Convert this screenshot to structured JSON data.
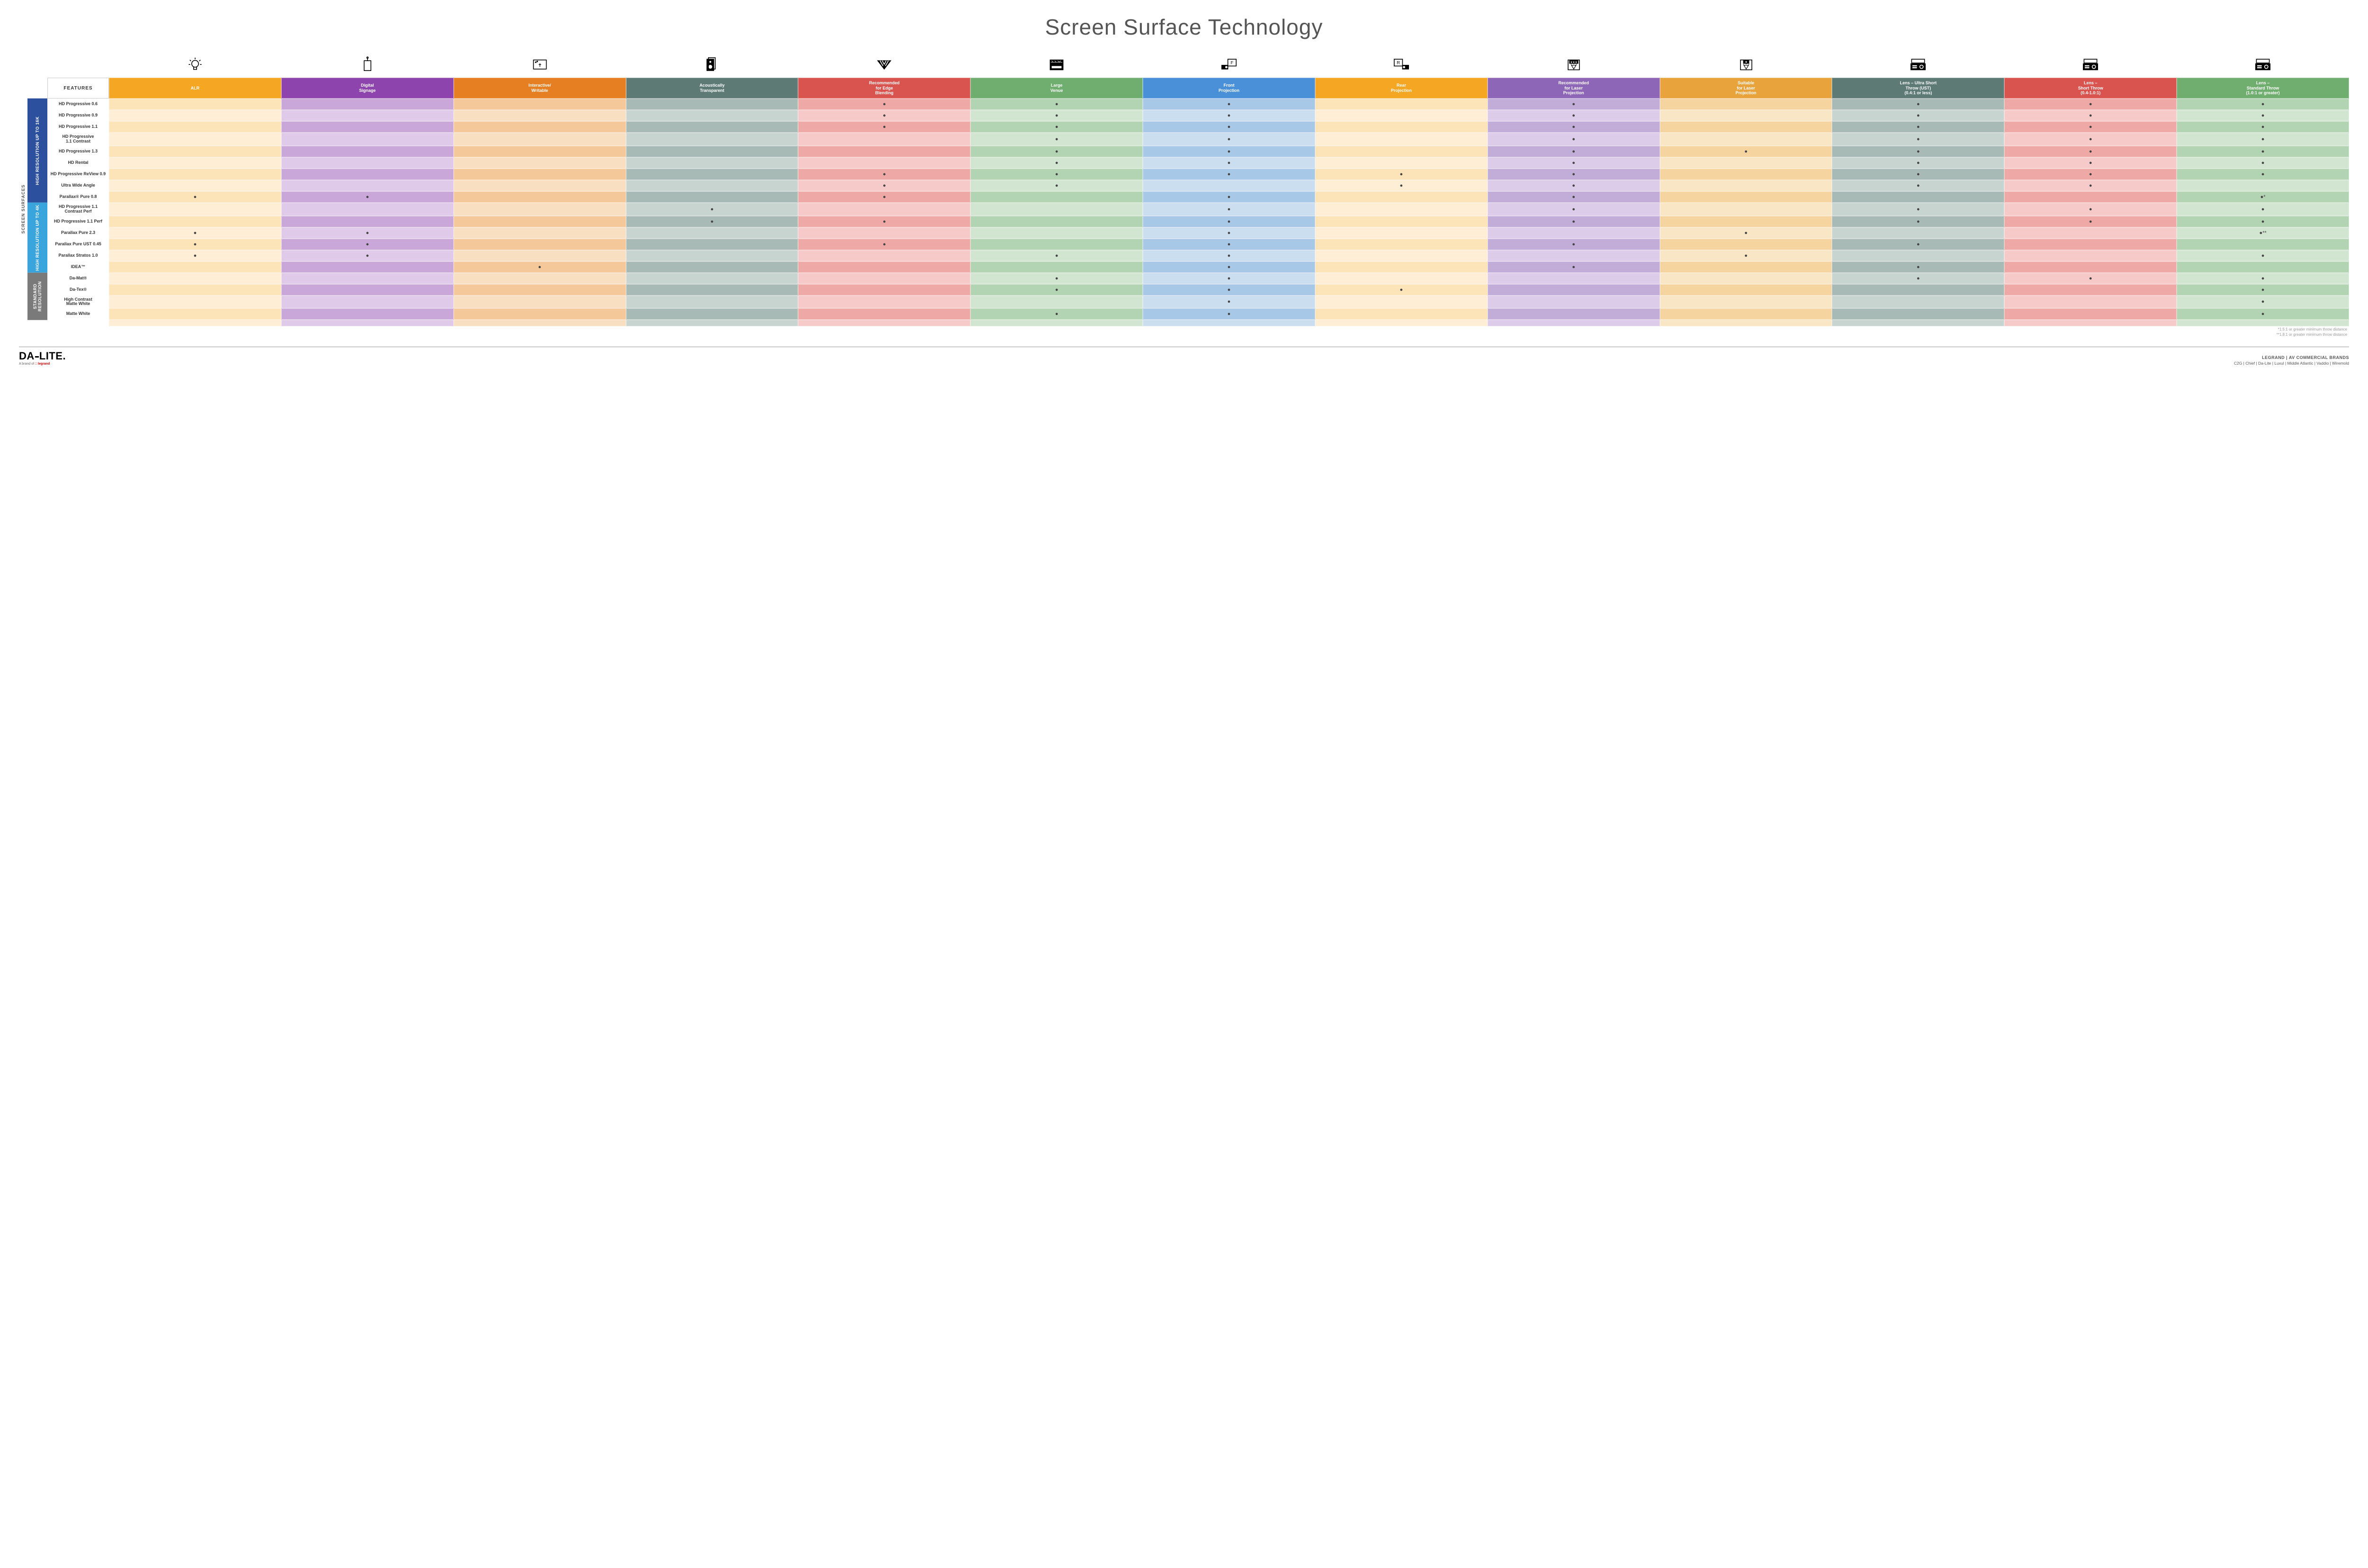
{
  "title": "Screen Surface Technology",
  "features_label": "FEATURES",
  "outer_label": "SCREEN SURFACES",
  "columns": [
    {
      "key": "alr",
      "label": "ALR",
      "color": "#f5a623",
      "light": "#fde3b8",
      "lighter": "#feeed5",
      "icon": "bulb"
    },
    {
      "key": "signage",
      "label": "Digital\nSignage",
      "color": "#8e44ad",
      "light": "#c9a8d9",
      "lighter": "#e0cae9",
      "icon": "signage"
    },
    {
      "key": "interactive",
      "label": "Interactive/\nWritable",
      "color": "#e67e22",
      "light": "#f5c89a",
      "lighter": "#f9dfc2",
      "icon": "touch"
    },
    {
      "key": "acoustic",
      "label": "Acoustically\nTransparent",
      "color": "#5d7b74",
      "light": "#a8bab5",
      "lighter": "#c8d4d0",
      "icon": "speaker"
    },
    {
      "key": "edge",
      "label": "Recommended\nfor Edge\nBlending",
      "color": "#d9534f",
      "light": "#eea9a7",
      "lighter": "#f5cac9",
      "icon": "blend"
    },
    {
      "key": "large",
      "label": "Large\nVenue",
      "color": "#6fae6f",
      "light": "#b3d4b3",
      "lighter": "#d1e5d1",
      "icon": "venue"
    },
    {
      "key": "front",
      "label": "Front\nProjection",
      "color": "#4a90d9",
      "light": "#a8c8e8",
      "lighter": "#cbdef0",
      "icon": "front"
    },
    {
      "key": "rear",
      "label": "Rear\nProjection",
      "color": "#f5a623",
      "light": "#fde3b8",
      "lighter": "#feeed5",
      "icon": "rear"
    },
    {
      "key": "reclaser",
      "label": "Recommended\nfor Laser\nProjection",
      "color": "#8e66b8",
      "light": "#c2acd8",
      "lighter": "#dccce9",
      "icon": "laser3"
    },
    {
      "key": "suitlaser",
      "label": "Suitable\nfor Laser\nProjection",
      "color": "#e8a33d",
      "light": "#f5d4a0",
      "lighter": "#f9e6c5",
      "icon": "laser1"
    },
    {
      "key": "ust",
      "label": "Lens – Ultra Short\nThrow (UST)\n(0.4:1 or less)",
      "color": "#5d7b74",
      "light": "#a8bab5",
      "lighter": "#c8d4d0",
      "icon": "proj-ust"
    },
    {
      "key": "short",
      "label": "Lens –\nShort Throw\n(0.4-1.0:1)",
      "color": "#d9534f",
      "light": "#eea9a7",
      "lighter": "#f5cac9",
      "icon": "proj-short"
    },
    {
      "key": "std",
      "label": "Lens –\nStandard Throw\n(1.0:1 or greater)",
      "color": "#6fae6f",
      "light": "#b3d4b3",
      "lighter": "#d1e5d1",
      "icon": "proj-std"
    }
  ],
  "groups": [
    {
      "label": "HIGH RESOLUTION UP TO 16K",
      "color": "#2c4f9e",
      "rows": [
        {
          "name": "HD Progressive 0.6",
          "dots": [
            "edge",
            "large",
            "front",
            "reclaser",
            "ust",
            "short",
            "std"
          ]
        },
        {
          "name": "HD Progressive 0.9",
          "dots": [
            "edge",
            "large",
            "front",
            "reclaser",
            "ust",
            "short",
            "std"
          ]
        },
        {
          "name": "HD Progressive 1.1",
          "dots": [
            "edge",
            "large",
            "front",
            "reclaser",
            "ust",
            "short",
            "std"
          ]
        },
        {
          "name": "HD Progressive\n1.1 Contrast",
          "dots": [
            "large",
            "front",
            "reclaser",
            "ust",
            "short",
            "std"
          ]
        },
        {
          "name": "HD Progressive 1.3",
          "dots": [
            "large",
            "front",
            "reclaser",
            "suitlaser",
            "ust",
            "short",
            "std"
          ]
        },
        {
          "name": "HD Rental",
          "dots": [
            "large",
            "front",
            "reclaser",
            "ust",
            "short",
            "std"
          ]
        },
        {
          "name": "HD Progressive ReView 0.9",
          "dots": [
            "edge",
            "large",
            "front",
            "rear",
            "reclaser",
            "ust",
            "short",
            "std"
          ]
        },
        {
          "name": "Ultra Wide Angle",
          "dots": [
            "edge",
            "large",
            "rear",
            "reclaser",
            "ust",
            "short"
          ]
        },
        {
          "name": "Parallax® Pure 0.8",
          "dots": [
            "alr",
            "signage",
            "edge",
            "front",
            "reclaser"
          ],
          "suffix": {
            "std": "●*"
          }
        }
      ]
    },
    {
      "label": "HIGH RESOLUTION UP TO 4K",
      "color": "#3aa5dd",
      "rows": [
        {
          "name": "HD Progressive 1.1\nContrast Perf",
          "dots": [
            "acoustic",
            "front",
            "reclaser",
            "ust",
            "short",
            "std"
          ]
        },
        {
          "name": "HD Progressive 1.1 Perf",
          "dots": [
            "acoustic",
            "edge",
            "front",
            "reclaser",
            "ust",
            "short",
            "std"
          ]
        },
        {
          "name": "Parallax Pure 2.3",
          "dots": [
            "alr",
            "signage",
            "front",
            "suitlaser"
          ],
          "suffix": {
            "std": "●**"
          }
        },
        {
          "name": "Parallax Pure UST 0.45",
          "dots": [
            "alr",
            "signage",
            "edge",
            "front",
            "reclaser",
            "ust"
          ]
        },
        {
          "name": "Parallax Stratos 1.0",
          "dots": [
            "alr",
            "signage",
            "large",
            "front",
            "suitlaser",
            "std"
          ]
        },
        {
          "name": "IDEA™",
          "dots": [
            "interactive",
            "front",
            "reclaser",
            "ust"
          ]
        }
      ]
    },
    {
      "label": "STANDARD\nRESOLUTION",
      "color": "#7a7a7a",
      "rows": [
        {
          "name": "Da-Mat®",
          "dots": [
            "large",
            "front",
            "ust",
            "short",
            "std"
          ]
        },
        {
          "name": "Da-Tex®",
          "dots": [
            "large",
            "front",
            "rear",
            "std"
          ]
        },
        {
          "name": "High Contrast\nMatte White",
          "dots": [
            "front",
            "std"
          ]
        },
        {
          "name": "Matte White",
          "dots": [
            "large",
            "front",
            "std"
          ]
        }
      ]
    }
  ],
  "footnotes": [
    "*1.5:1 or greater minimum throw distance",
    "**1.8:1 or greater minimum throw distance"
  ],
  "footer": {
    "logo": "DA LITE.",
    "sublogo_prefix": "A brand of ",
    "sublogo_brand": "legrand",
    "brands_title": "LEGRAND | AV COMMERCIAL BRANDS",
    "brands_list": "C2G  |  Chief  |  Da-Lite  |  Luxul  |  Middle Atlantic  |  Vaddio  |  Wiremold"
  }
}
